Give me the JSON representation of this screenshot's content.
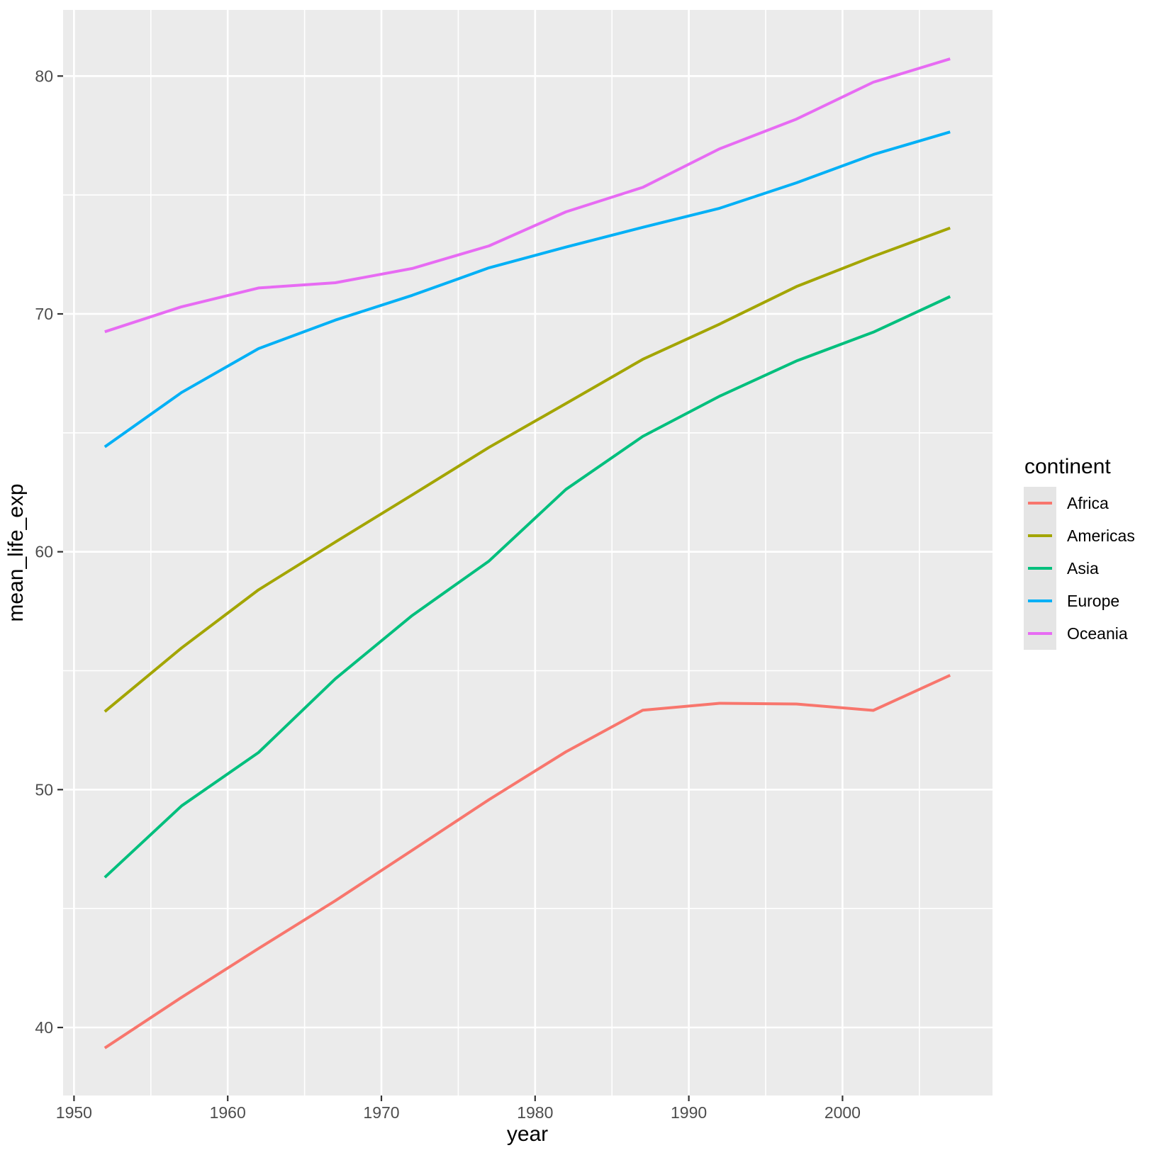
{
  "chart_data": {
    "type": "line",
    "title": "",
    "xlabel": "year",
    "ylabel": "mean_life_exp",
    "legend_title": "continent",
    "legend_position": "right",
    "grid": true,
    "x": [
      1952,
      1957,
      1962,
      1967,
      1972,
      1977,
      1982,
      1987,
      1992,
      1997,
      2002,
      2007
    ],
    "series": [
      {
        "name": "Africa",
        "color": "#F8766D",
        "values": [
          39.14,
          41.27,
          43.32,
          45.33,
          47.45,
          49.58,
          51.59,
          53.34,
          53.63,
          53.6,
          53.33,
          54.81
        ]
      },
      {
        "name": "Americas",
        "color": "#A3A500",
        "values": [
          53.28,
          55.96,
          58.4,
          60.41,
          62.39,
          64.39,
          66.23,
          68.09,
          69.57,
          71.15,
          72.42,
          73.61
        ]
      },
      {
        "name": "Asia",
        "color": "#00BF7D",
        "values": [
          46.31,
          49.32,
          51.56,
          54.66,
          57.32,
          59.61,
          62.62,
          64.85,
          66.54,
          68.02,
          69.23,
          70.73
        ]
      },
      {
        "name": "Europe",
        "color": "#00B0F6",
        "values": [
          64.41,
          66.7,
          68.54,
          69.74,
          70.78,
          71.94,
          72.81,
          73.64,
          74.44,
          75.51,
          76.7,
          77.65
        ]
      },
      {
        "name": "Oceania",
        "color": "#E76BF3",
        "values": [
          69.25,
          70.3,
          71.09,
          71.31,
          71.91,
          72.86,
          74.29,
          75.32,
          76.94,
          78.19,
          79.74,
          80.72
        ]
      }
    ],
    "xlim": [
      1949.29,
      2009.76
    ],
    "ylim": [
      37.14,
      82.78
    ],
    "x_major_ticks": [
      1950,
      1960,
      1970,
      1980,
      1990,
      2000
    ],
    "x_minor_ticks": [
      1955,
      1965,
      1975,
      1985,
      1995,
      2005
    ],
    "y_major_ticks": [
      40,
      50,
      60,
      70,
      80
    ],
    "y_minor_ticks": [
      45,
      55,
      65,
      75
    ]
  },
  "style": {
    "panel_bg": "#EBEBEB",
    "grid_color": "#FFFFFF",
    "tick_label_color": "#4D4D4D",
    "axis_title_color": "#000000",
    "tick_mark_color": "#333333",
    "legend_key_bg": "#E5E5E5",
    "line_width": 4
  }
}
